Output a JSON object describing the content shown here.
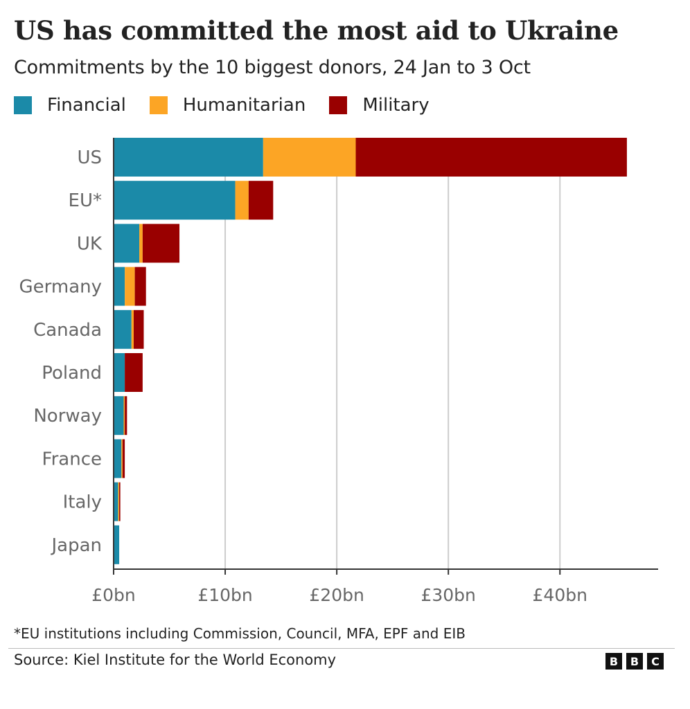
{
  "header": {
    "title": "US has committed the most aid to Ukraine",
    "subtitle": "Commitments by the 10 biggest donors, 24 Jan to 3 Oct"
  },
  "legend": [
    {
      "label": "Financial",
      "color": "#1b8aa8"
    },
    {
      "label": "Humanitarian",
      "color": "#fca525"
    },
    {
      "label": "Military",
      "color": "#990000"
    }
  ],
  "chart_data": {
    "type": "bar",
    "orientation": "horizontal",
    "stacked": true,
    "title": "US has committed the most aid to Ukraine",
    "subtitle": "Commitments by the 10 biggest donors, 24 Jan to 3 Oct",
    "xlabel": "",
    "ylabel": "",
    "categories": [
      "US",
      "EU*",
      "UK",
      "Germany",
      "Canada",
      "Poland",
      "Norway",
      "France",
      "Italy",
      "Japan"
    ],
    "series": [
      {
        "name": "Financial",
        "color": "#1b8aa8",
        "values": [
          13.4,
          10.9,
          2.3,
          1.0,
          1.6,
          1.0,
          0.9,
          0.7,
          0.4,
          0.5
        ]
      },
      {
        "name": "Humanitarian",
        "color": "#fca525",
        "values": [
          8.3,
          1.2,
          0.3,
          0.9,
          0.2,
          0.0,
          0.1,
          0.1,
          0.1,
          0.0
        ]
      },
      {
        "name": "Military",
        "color": "#990000",
        "values": [
          24.3,
          2.2,
          3.3,
          1.0,
          0.9,
          1.6,
          0.2,
          0.2,
          0.1,
          0.0
        ]
      }
    ],
    "xlim": [
      0,
      48.8
    ],
    "xticks": [
      0,
      10,
      20,
      30,
      40
    ],
    "xtick_labels": [
      "£0bn",
      "£10bn",
      "£20bn",
      "£30bn",
      "£40bn"
    ],
    "grid": "vertical",
    "legend": "top-left"
  },
  "footnote": "*EU institutions including Commission, Council, MFA, EPF and EIB",
  "source": "Source: Kiel Institute for the World Economy",
  "brand": {
    "letters": [
      "B",
      "B",
      "C"
    ]
  }
}
